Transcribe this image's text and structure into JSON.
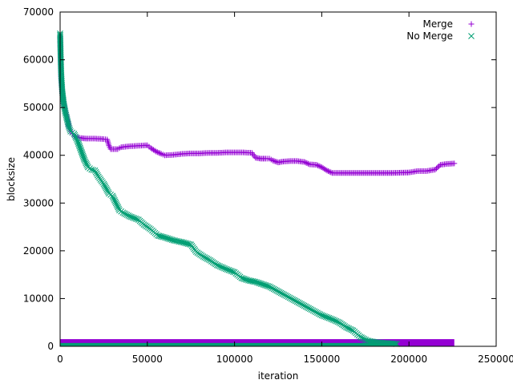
{
  "chart_data": {
    "type": "scatter",
    "title": "",
    "xlabel": "iteration",
    "ylabel": "blocksize",
    "xlim": [
      0,
      250000
    ],
    "ylim": [
      0,
      70000
    ],
    "xticks": [
      "0",
      "50000",
      "100000",
      "150000",
      "200000",
      "250000"
    ],
    "yticks": [
      "0",
      "10000",
      "20000",
      "30000",
      "40000",
      "50000",
      "60000",
      "70000"
    ],
    "grid": false,
    "legend_position": "top-right",
    "series": [
      {
        "name": "Merge",
        "marker": "plus",
        "color": "#9400d3",
        "points": [
          [
            0,
            65000
          ],
          [
            300,
            60000
          ],
          [
            600,
            56000
          ],
          [
            1200,
            53000
          ],
          [
            2000,
            51000
          ],
          [
            3000,
            49500
          ],
          [
            4000,
            48000
          ],
          [
            5000,
            46000
          ],
          [
            6000,
            45000
          ],
          [
            7000,
            44500
          ],
          [
            8000,
            44000
          ],
          [
            10000,
            43800
          ],
          [
            12000,
            43600
          ],
          [
            15000,
            43500
          ],
          [
            20000,
            43500
          ],
          [
            25000,
            43400
          ],
          [
            27000,
            43300
          ],
          [
            28000,
            42000
          ],
          [
            29000,
            41300
          ],
          [
            33000,
            41300
          ],
          [
            35000,
            41700
          ],
          [
            40000,
            41900
          ],
          [
            45000,
            42000
          ],
          [
            50000,
            42100
          ],
          [
            52000,
            41500
          ],
          [
            55000,
            40800
          ],
          [
            58000,
            40300
          ],
          [
            60000,
            40000
          ],
          [
            65000,
            40100
          ],
          [
            70000,
            40300
          ],
          [
            75000,
            40400
          ],
          [
            80000,
            40400
          ],
          [
            85000,
            40500
          ],
          [
            90000,
            40500
          ],
          [
            95000,
            40600
          ],
          [
            100000,
            40600
          ],
          [
            105000,
            40600
          ],
          [
            110000,
            40500
          ],
          [
            112000,
            39500
          ],
          [
            115000,
            39300
          ],
          [
            118000,
            39300
          ],
          [
            120000,
            39300
          ],
          [
            122000,
            38900
          ],
          [
            125000,
            38500
          ],
          [
            128000,
            38700
          ],
          [
            132000,
            38800
          ],
          [
            136000,
            38800
          ],
          [
            140000,
            38600
          ],
          [
            143000,
            38100
          ],
          [
            147000,
            38000
          ],
          [
            150000,
            37500
          ],
          [
            153000,
            36800
          ],
          [
            156000,
            36300
          ],
          [
            160000,
            36300
          ],
          [
            170000,
            36300
          ],
          [
            180000,
            36300
          ],
          [
            190000,
            36300
          ],
          [
            200000,
            36400
          ],
          [
            205000,
            36700
          ],
          [
            210000,
            36700
          ],
          [
            215000,
            37000
          ],
          [
            218000,
            38000
          ],
          [
            222000,
            38200
          ],
          [
            226000,
            38300
          ]
        ],
        "low_band": {
          "x_range": [
            0,
            226000
          ],
          "y_range": [
            0,
            1500
          ]
        }
      },
      {
        "name": "No Merge",
        "marker": "cross",
        "color": "#009e73",
        "points": [
          [
            0,
            65500
          ],
          [
            300,
            61000
          ],
          [
            600,
            57000
          ],
          [
            1200,
            53500
          ],
          [
            2000,
            51000
          ],
          [
            3000,
            49000
          ],
          [
            4000,
            47500
          ],
          [
            5000,
            46000
          ],
          [
            6000,
            45000
          ],
          [
            8000,
            44500
          ],
          [
            10000,
            43000
          ],
          [
            12000,
            41000
          ],
          [
            14000,
            39000
          ],
          [
            16000,
            37500
          ],
          [
            18000,
            37000
          ],
          [
            20000,
            36800
          ],
          [
            22000,
            35500
          ],
          [
            25000,
            34000
          ],
          [
            28000,
            32000
          ],
          [
            30000,
            31500
          ],
          [
            32000,
            30000
          ],
          [
            34000,
            28500
          ],
          [
            36000,
            28000
          ],
          [
            40000,
            27200
          ],
          [
            45000,
            26500
          ],
          [
            48000,
            25500
          ],
          [
            52000,
            24500
          ],
          [
            56000,
            23200
          ],
          [
            60000,
            22800
          ],
          [
            65000,
            22200
          ],
          [
            70000,
            21800
          ],
          [
            75000,
            21300
          ],
          [
            78000,
            19800
          ],
          [
            82000,
            18800
          ],
          [
            86000,
            18000
          ],
          [
            90000,
            17000
          ],
          [
            95000,
            16200
          ],
          [
            100000,
            15500
          ],
          [
            104000,
            14300
          ],
          [
            108000,
            13800
          ],
          [
            112000,
            13500
          ],
          [
            116000,
            13000
          ],
          [
            120000,
            12500
          ],
          [
            125000,
            11500
          ],
          [
            130000,
            10500
          ],
          [
            135000,
            9500
          ],
          [
            140000,
            8500
          ],
          [
            145000,
            7500
          ],
          [
            150000,
            6500
          ],
          [
            155000,
            5800
          ],
          [
            160000,
            5000
          ],
          [
            164000,
            4000
          ],
          [
            168000,
            3300
          ],
          [
            172000,
            2000
          ],
          [
            176000,
            1200
          ],
          [
            180000,
            900
          ],
          [
            185000,
            700
          ],
          [
            190000,
            600
          ],
          [
            193000,
            500
          ]
        ],
        "low_band": {
          "x_range": [
            0,
            193000
          ],
          "y_range": [
            0,
            700
          ]
        }
      }
    ]
  }
}
